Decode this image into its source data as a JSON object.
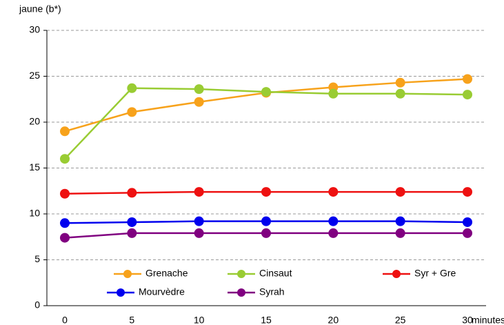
{
  "chart_data": {
    "type": "line",
    "y_label": "jaune (b*)",
    "x_label": "minutes",
    "categories": [
      "0",
      "5",
      "10",
      "15",
      "20",
      "25",
      "30"
    ],
    "series": [
      {
        "name": "Grenache",
        "color": "#f7a21b",
        "values": [
          19,
          21.1,
          22.2,
          23.2,
          23.8,
          24.3,
          24.7
        ]
      },
      {
        "name": "Cinsaut",
        "color": "#99cc33",
        "values": [
          16,
          23.7,
          23.6,
          23.3,
          23.1,
          23.1,
          23.0
        ]
      },
      {
        "name": "Syr + Gre",
        "color": "#ee1111",
        "values": [
          12.2,
          12.3,
          12.4,
          12.4,
          12.4,
          12.4,
          12.4
        ]
      },
      {
        "name": "Mourvèdre",
        "color": "#0000ee",
        "values": [
          9.0,
          9.1,
          9.2,
          9.2,
          9.2,
          9.2,
          9.1
        ]
      },
      {
        "name": "Syrah",
        "color": "#800080",
        "values": [
          7.4,
          7.9,
          7.9,
          7.9,
          7.9,
          7.9,
          7.9
        ]
      }
    ],
    "ylim": [
      0,
      30
    ],
    "yticks": [
      0,
      5,
      10,
      15,
      20,
      25,
      30
    ],
    "grid": true
  }
}
